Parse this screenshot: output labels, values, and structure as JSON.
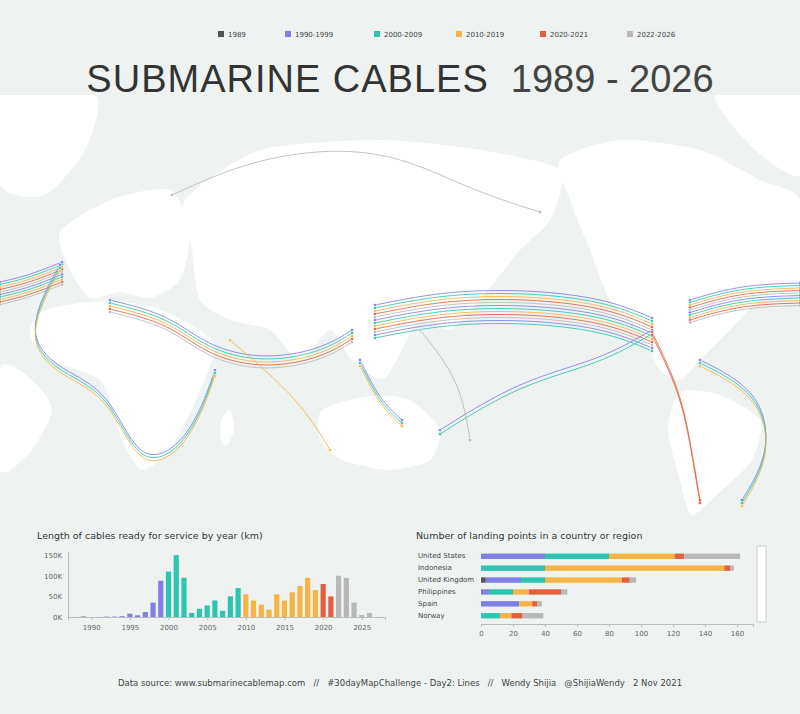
{
  "title": "SUBMARINE CABLES",
  "subtitle": "1989 - 2026",
  "footer": "Data source: www.submarinecablemap.com   //   #30dayMapChallenge - Day2: Lines   //   Wendy Shijia   @ShijiaWendy   2 Nov 2021",
  "chart_data": [
    {
      "type": "bar",
      "title": "Length of cables ready for service by year (km)",
      "x": [
        1989,
        1990,
        1991,
        1992,
        1993,
        1994,
        1995,
        1996,
        1997,
        1998,
        1999,
        2000,
        2001,
        2002,
        2003,
        2004,
        2005,
        2006,
        2007,
        2008,
        2009,
        2010,
        2011,
        2012,
        2013,
        2014,
        2015,
        2016,
        2017,
        2018,
        2019,
        2020,
        2021,
        2022,
        2023,
        2024,
        2025,
        2026
      ],
      "values": [
        1000,
        0,
        0,
        1000,
        1000,
        2000,
        8000,
        4000,
        12000,
        35000,
        88000,
        110000,
        150000,
        95000,
        10000,
        20000,
        28000,
        40000,
        15000,
        50000,
        70000,
        55000,
        40000,
        30000,
        18000,
        55000,
        40000,
        60000,
        75000,
        95000,
        65000,
        80000,
        50000,
        100000,
        95000,
        35000,
        5000,
        10000
      ],
      "colors": [
        "#555555",
        "#7f7fe6",
        "#7f7fe6",
        "#7f7fe6",
        "#7f7fe6",
        "#7f7fe6",
        "#7f7fe6",
        "#7f7fe6",
        "#7f7fe6",
        "#7f7fe6",
        "#7f7fe6",
        "#2ec4b0",
        "#2ec4b0",
        "#2ec4b0",
        "#2ec4b0",
        "#2ec4b0",
        "#2ec4b0",
        "#2ec4b0",
        "#2ec4b0",
        "#2ec4b0",
        "#2ec4b0",
        "#f6b444",
        "#f6b444",
        "#f6b444",
        "#f6b444",
        "#f6b444",
        "#f6b444",
        "#f6b444",
        "#f6b444",
        "#f6b444",
        "#f6b444",
        "#e2603f",
        "#e2603f",
        "#b8b8b8",
        "#b8b8b8",
        "#b8b8b8",
        "#b8b8b8",
        "#b8b8b8"
      ],
      "xlim": [
        1987,
        2028
      ],
      "xticks": [
        1990,
        1995,
        2000,
        2005,
        2010,
        2015,
        2020,
        2025
      ],
      "ylim": [
        0,
        160000
      ],
      "yticks": [
        {
          "value": 0,
          "label": "0K"
        },
        {
          "value": 50000,
          "label": "50K"
        },
        {
          "value": 100000,
          "label": "100K"
        },
        {
          "value": 150000,
          "label": "150K"
        }
      ],
      "grid": false
    },
    {
      "type": "bar",
      "orientation": "horizontal",
      "stacked": true,
      "title": "Number of landing points in a country or region",
      "categories": [
        "United States",
        "Indonesia",
        "United Kingdom",
        "Philippines",
        "Spain",
        "Norway"
      ],
      "series": [
        {
          "name": "1989",
          "color": "#555555",
          "values": [
            0,
            0,
            3,
            0,
            0,
            0
          ]
        },
        {
          "name": "1990-1999",
          "color": "#7f7fe6",
          "values": [
            40,
            0,
            22,
            5,
            24,
            0
          ]
        },
        {
          "name": "2000-2009",
          "color": "#2ec4b0",
          "values": [
            40,
            40,
            15,
            15,
            0,
            12
          ]
        },
        {
          "name": "2010-2019",
          "color": "#f6b444",
          "values": [
            41,
            112,
            48,
            10,
            8,
            7
          ]
        },
        {
          "name": "2020-2021",
          "color": "#e2603f",
          "values": [
            6,
            4,
            5,
            20,
            3,
            7
          ]
        },
        {
          "name": "2022-2026",
          "color": "#b8b8b8",
          "values": [
            35,
            2,
            4,
            4,
            3,
            13
          ]
        }
      ],
      "xlim": [
        0,
        170
      ],
      "xticks": [
        0,
        20,
        40,
        60,
        80,
        100,
        120,
        140,
        160
      ],
      "grid": false
    }
  ]
}
